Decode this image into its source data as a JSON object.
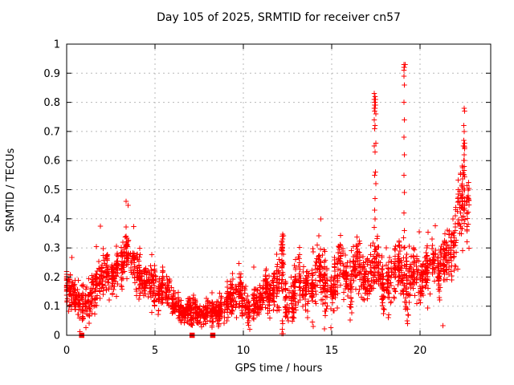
{
  "title": "Day 105 of 2025, SRMTID for receiver cn57",
  "chart_data": {
    "type": "scatter",
    "title": "Day 105 of 2025, SRMTID for receiver cn57",
    "xlabel": "GPS time / hours",
    "ylabel": "SRMTID / TECUs",
    "xlim": [
      0,
      24
    ],
    "ylim": [
      0,
      1
    ],
    "xticks": [
      {
        "v": 0,
        "label": "0"
      },
      {
        "v": 5,
        "label": "5"
      },
      {
        "v": 10,
        "label": "10"
      },
      {
        "v": 15,
        "label": "15"
      },
      {
        "v": 20,
        "label": "20"
      }
    ],
    "yticks": [
      {
        "v": 0,
        "label": "0"
      },
      {
        "v": 0.1,
        "label": "0.1"
      },
      {
        "v": 0.2,
        "label": "0.2"
      },
      {
        "v": 0.3,
        "label": "0.3"
      },
      {
        "v": 0.4,
        "label": "0.4"
      },
      {
        "v": 0.5,
        "label": "0.5"
      },
      {
        "v": 0.6,
        "label": "0.6"
      },
      {
        "v": 0.7,
        "label": "0.7"
      },
      {
        "v": 0.8,
        "label": "0.8"
      },
      {
        "v": 0.9,
        "label": "0.9"
      },
      {
        "v": 1,
        "label": "1"
      }
    ],
    "grid": true,
    "legend": "none",
    "marker": "plus",
    "marker_color": "#ff0000",
    "grid_color": "#b8b8b8",
    "border_color": "#000000",
    "points_per_bin": 28,
    "bin_halfwidth": 0.125,
    "trend": [
      [
        0.0,
        0.17,
        0.05
      ],
      [
        0.25,
        0.14,
        0.05
      ],
      [
        0.5,
        0.12,
        0.04
      ],
      [
        0.75,
        0.11,
        0.04
      ],
      [
        1.0,
        0.11,
        0.04
      ],
      [
        1.25,
        0.12,
        0.04
      ],
      [
        1.5,
        0.14,
        0.05
      ],
      [
        1.75,
        0.17,
        0.05
      ],
      [
        2.0,
        0.2,
        0.05
      ],
      [
        2.25,
        0.22,
        0.05
      ],
      [
        2.5,
        0.2,
        0.05
      ],
      [
        2.75,
        0.22,
        0.05
      ],
      [
        3.0,
        0.24,
        0.05
      ],
      [
        3.25,
        0.27,
        0.05
      ],
      [
        3.5,
        0.29,
        0.05
      ],
      [
        3.75,
        0.26,
        0.05
      ],
      [
        4.0,
        0.22,
        0.05
      ],
      [
        4.25,
        0.19,
        0.05
      ],
      [
        4.5,
        0.17,
        0.04
      ],
      [
        4.75,
        0.18,
        0.04
      ],
      [
        5.0,
        0.16,
        0.04
      ],
      [
        5.25,
        0.14,
        0.04
      ],
      [
        5.5,
        0.17,
        0.05
      ],
      [
        5.75,
        0.15,
        0.04
      ],
      [
        6.0,
        0.12,
        0.04
      ],
      [
        6.25,
        0.1,
        0.03
      ],
      [
        6.5,
        0.09,
        0.03
      ],
      [
        6.75,
        0.08,
        0.03
      ],
      [
        7.0,
        0.08,
        0.03
      ],
      [
        7.25,
        0.08,
        0.03
      ],
      [
        7.5,
        0.08,
        0.03
      ],
      [
        7.75,
        0.07,
        0.03
      ],
      [
        8.0,
        0.08,
        0.03
      ],
      [
        8.25,
        0.08,
        0.03
      ],
      [
        8.5,
        0.08,
        0.03
      ],
      [
        8.75,
        0.09,
        0.03
      ],
      [
        9.0,
        0.1,
        0.04
      ],
      [
        9.25,
        0.12,
        0.04
      ],
      [
        9.5,
        0.15,
        0.05
      ],
      [
        9.75,
        0.16,
        0.05
      ],
      [
        10.0,
        0.12,
        0.04
      ],
      [
        10.25,
        0.09,
        0.04
      ],
      [
        10.5,
        0.11,
        0.04
      ],
      [
        10.75,
        0.12,
        0.04
      ],
      [
        11.0,
        0.13,
        0.04
      ],
      [
        11.25,
        0.15,
        0.05
      ],
      [
        11.5,
        0.15,
        0.05
      ],
      [
        11.75,
        0.14,
        0.05
      ],
      [
        12.0,
        0.17,
        0.06
      ],
      [
        12.25,
        0.24,
        0.08
      ],
      [
        12.5,
        0.12,
        0.05
      ],
      [
        12.75,
        0.13,
        0.05
      ],
      [
        13.0,
        0.16,
        0.05
      ],
      [
        13.25,
        0.2,
        0.06
      ],
      [
        13.5,
        0.17,
        0.05
      ],
      [
        13.75,
        0.15,
        0.05
      ],
      [
        14.0,
        0.17,
        0.05
      ],
      [
        14.25,
        0.22,
        0.06
      ],
      [
        14.5,
        0.18,
        0.06
      ],
      [
        14.75,
        0.14,
        0.05
      ],
      [
        15.0,
        0.16,
        0.05
      ],
      [
        15.25,
        0.21,
        0.06
      ],
      [
        15.5,
        0.24,
        0.06
      ],
      [
        15.75,
        0.19,
        0.06
      ],
      [
        16.0,
        0.17,
        0.06
      ],
      [
        16.25,
        0.23,
        0.06
      ],
      [
        16.5,
        0.26,
        0.06
      ],
      [
        16.75,
        0.21,
        0.06
      ],
      [
        17.0,
        0.18,
        0.05
      ],
      [
        17.25,
        0.23,
        0.06
      ],
      [
        17.5,
        0.26,
        0.06
      ],
      [
        17.75,
        0.21,
        0.06
      ],
      [
        18.0,
        0.15,
        0.05
      ],
      [
        18.25,
        0.18,
        0.06
      ],
      [
        18.5,
        0.22,
        0.06
      ],
      [
        18.75,
        0.24,
        0.06
      ],
      [
        19.0,
        0.21,
        0.06
      ],
      [
        19.25,
        0.17,
        0.06
      ],
      [
        19.5,
        0.2,
        0.06
      ],
      [
        19.75,
        0.23,
        0.06
      ],
      [
        20.0,
        0.19,
        0.05
      ],
      [
        20.25,
        0.21,
        0.06
      ],
      [
        20.5,
        0.23,
        0.06
      ],
      [
        20.75,
        0.25,
        0.06
      ],
      [
        21.0,
        0.22,
        0.06
      ],
      [
        21.25,
        0.25,
        0.06
      ],
      [
        21.5,
        0.27,
        0.07
      ],
      [
        21.75,
        0.3,
        0.07
      ],
      [
        22.0,
        0.35,
        0.09
      ],
      [
        22.25,
        0.43,
        0.09
      ],
      [
        22.5,
        0.48,
        0.08
      ],
      [
        22.65,
        0.45,
        0.08
      ]
    ],
    "outliers": [
      [
        17.4,
        0.83
      ],
      [
        17.45,
        0.82
      ],
      [
        17.42,
        0.81
      ],
      [
        17.48,
        0.81
      ],
      [
        17.44,
        0.8
      ],
      [
        17.46,
        0.8
      ],
      [
        17.43,
        0.79
      ],
      [
        17.47,
        0.79
      ],
      [
        17.45,
        0.78
      ],
      [
        17.41,
        0.78
      ],
      [
        17.44,
        0.77
      ],
      [
        17.5,
        0.76
      ],
      [
        17.42,
        0.74
      ],
      [
        17.46,
        0.72
      ],
      [
        17.44,
        0.71
      ],
      [
        17.5,
        0.66
      ],
      [
        17.42,
        0.65
      ],
      [
        17.45,
        0.63
      ],
      [
        17.47,
        0.56
      ],
      [
        17.43,
        0.55
      ],
      [
        17.5,
        0.52
      ],
      [
        17.45,
        0.47
      ],
      [
        17.44,
        0.43
      ],
      [
        17.46,
        0.4
      ],
      [
        17.42,
        0.37
      ],
      [
        19.1,
        0.93
      ],
      [
        19.15,
        0.93
      ],
      [
        19.08,
        0.92
      ],
      [
        19.12,
        0.92
      ],
      [
        19.1,
        0.91
      ],
      [
        19.1,
        0.89
      ],
      [
        19.12,
        0.86
      ],
      [
        19.1,
        0.8
      ],
      [
        19.11,
        0.74
      ],
      [
        19.1,
        0.68
      ],
      [
        19.12,
        0.62
      ],
      [
        19.1,
        0.55
      ],
      [
        19.11,
        0.49
      ],
      [
        19.1,
        0.42
      ],
      [
        19.12,
        0.36
      ],
      [
        19.1,
        0.3
      ],
      [
        22.5,
        0.78
      ],
      [
        22.52,
        0.77
      ],
      [
        22.48,
        0.72
      ],
      [
        22.5,
        0.7
      ],
      [
        22.47,
        0.67
      ],
      [
        22.53,
        0.66
      ],
      [
        22.5,
        0.65
      ],
      [
        22.46,
        0.65
      ],
      [
        22.52,
        0.64
      ],
      [
        22.5,
        0.62
      ],
      [
        22.48,
        0.6
      ],
      [
        22.51,
        0.58
      ],
      [
        12.2,
        0.34
      ],
      [
        12.22,
        0.33
      ],
      [
        12.18,
        0.32
      ],
      [
        12.2,
        0.31
      ],
      [
        12.21,
        0.3
      ],
      [
        12.2,
        0.29
      ],
      [
        12.18,
        0.28
      ],
      [
        12.2,
        0.05
      ],
      [
        12.22,
        0.04
      ],
      [
        12.2,
        0.02
      ],
      [
        12.18,
        0.005
      ],
      [
        12.24,
        0.005
      ],
      [
        8.6,
        0.03
      ],
      [
        8.62,
        0.04
      ],
      [
        8.58,
        0.05
      ],
      [
        8.6,
        0.06
      ],
      [
        10.3,
        0.035
      ],
      [
        10.32,
        0.05
      ],
      [
        10.28,
        0.06
      ],
      [
        12.55,
        0.05
      ],
      [
        12.5,
        0.06
      ],
      [
        13.95,
        0.03
      ],
      [
        13.9,
        0.045
      ],
      [
        18.2,
        0.06
      ],
      [
        18.22,
        0.07
      ],
      [
        19.3,
        0.04
      ],
      [
        19.28,
        0.05
      ],
      [
        19.32,
        0.07
      ],
      [
        19.3,
        0.09
      ]
    ],
    "zero_squares": [
      0.85,
      7.1,
      8.27
    ]
  }
}
